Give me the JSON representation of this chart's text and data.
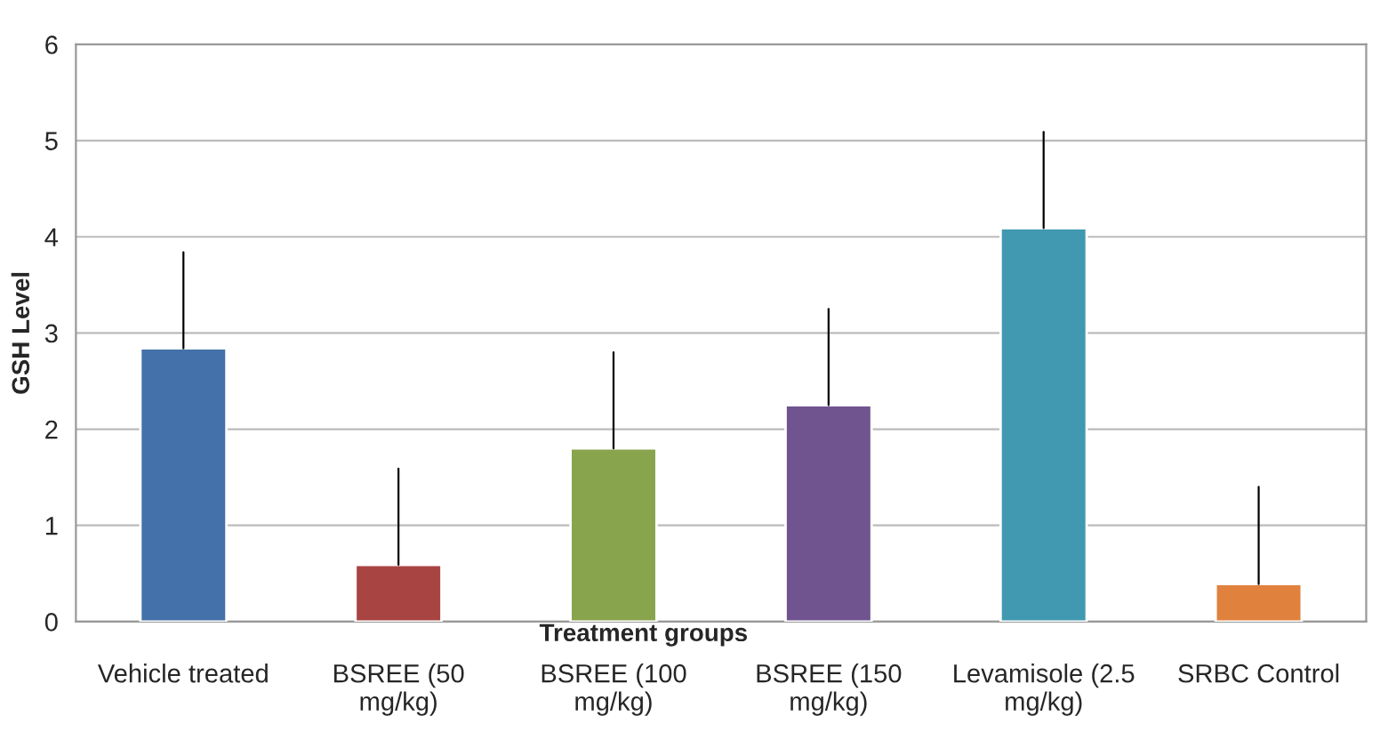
{
  "chart_data": {
    "type": "bar",
    "xlabel": "Treatment groups",
    "ylabel": "GSH Level",
    "categories": [
      "Vehicle treated",
      "BSREE (50\nmg/kg)",
      "BSREE (100\nmg/kg)",
      "BSREE (150\nmg/kg)",
      "Levamisole (2.5\nmg/kg)",
      "SRBC Control"
    ],
    "values": [
      2.84,
      0.59,
      1.8,
      2.25,
      4.09,
      0.39
    ],
    "colors": [
      "#4471a9",
      "#a84442",
      "#88a44c",
      "#705490",
      "#4099b0",
      "#e0813e"
    ],
    "errors": [
      [
        2.84,
        3.84
      ],
      [
        0.59,
        1.59
      ],
      [
        1.8,
        2.8
      ],
      [
        2.25,
        3.25
      ],
      [
        4.09,
        5.09
      ],
      [
        0.39,
        1.4
      ]
    ],
    "ylim": [
      0,
      6
    ],
    "yticks": [
      0,
      1,
      2,
      3,
      4,
      5,
      6
    ],
    "grid": "y"
  }
}
